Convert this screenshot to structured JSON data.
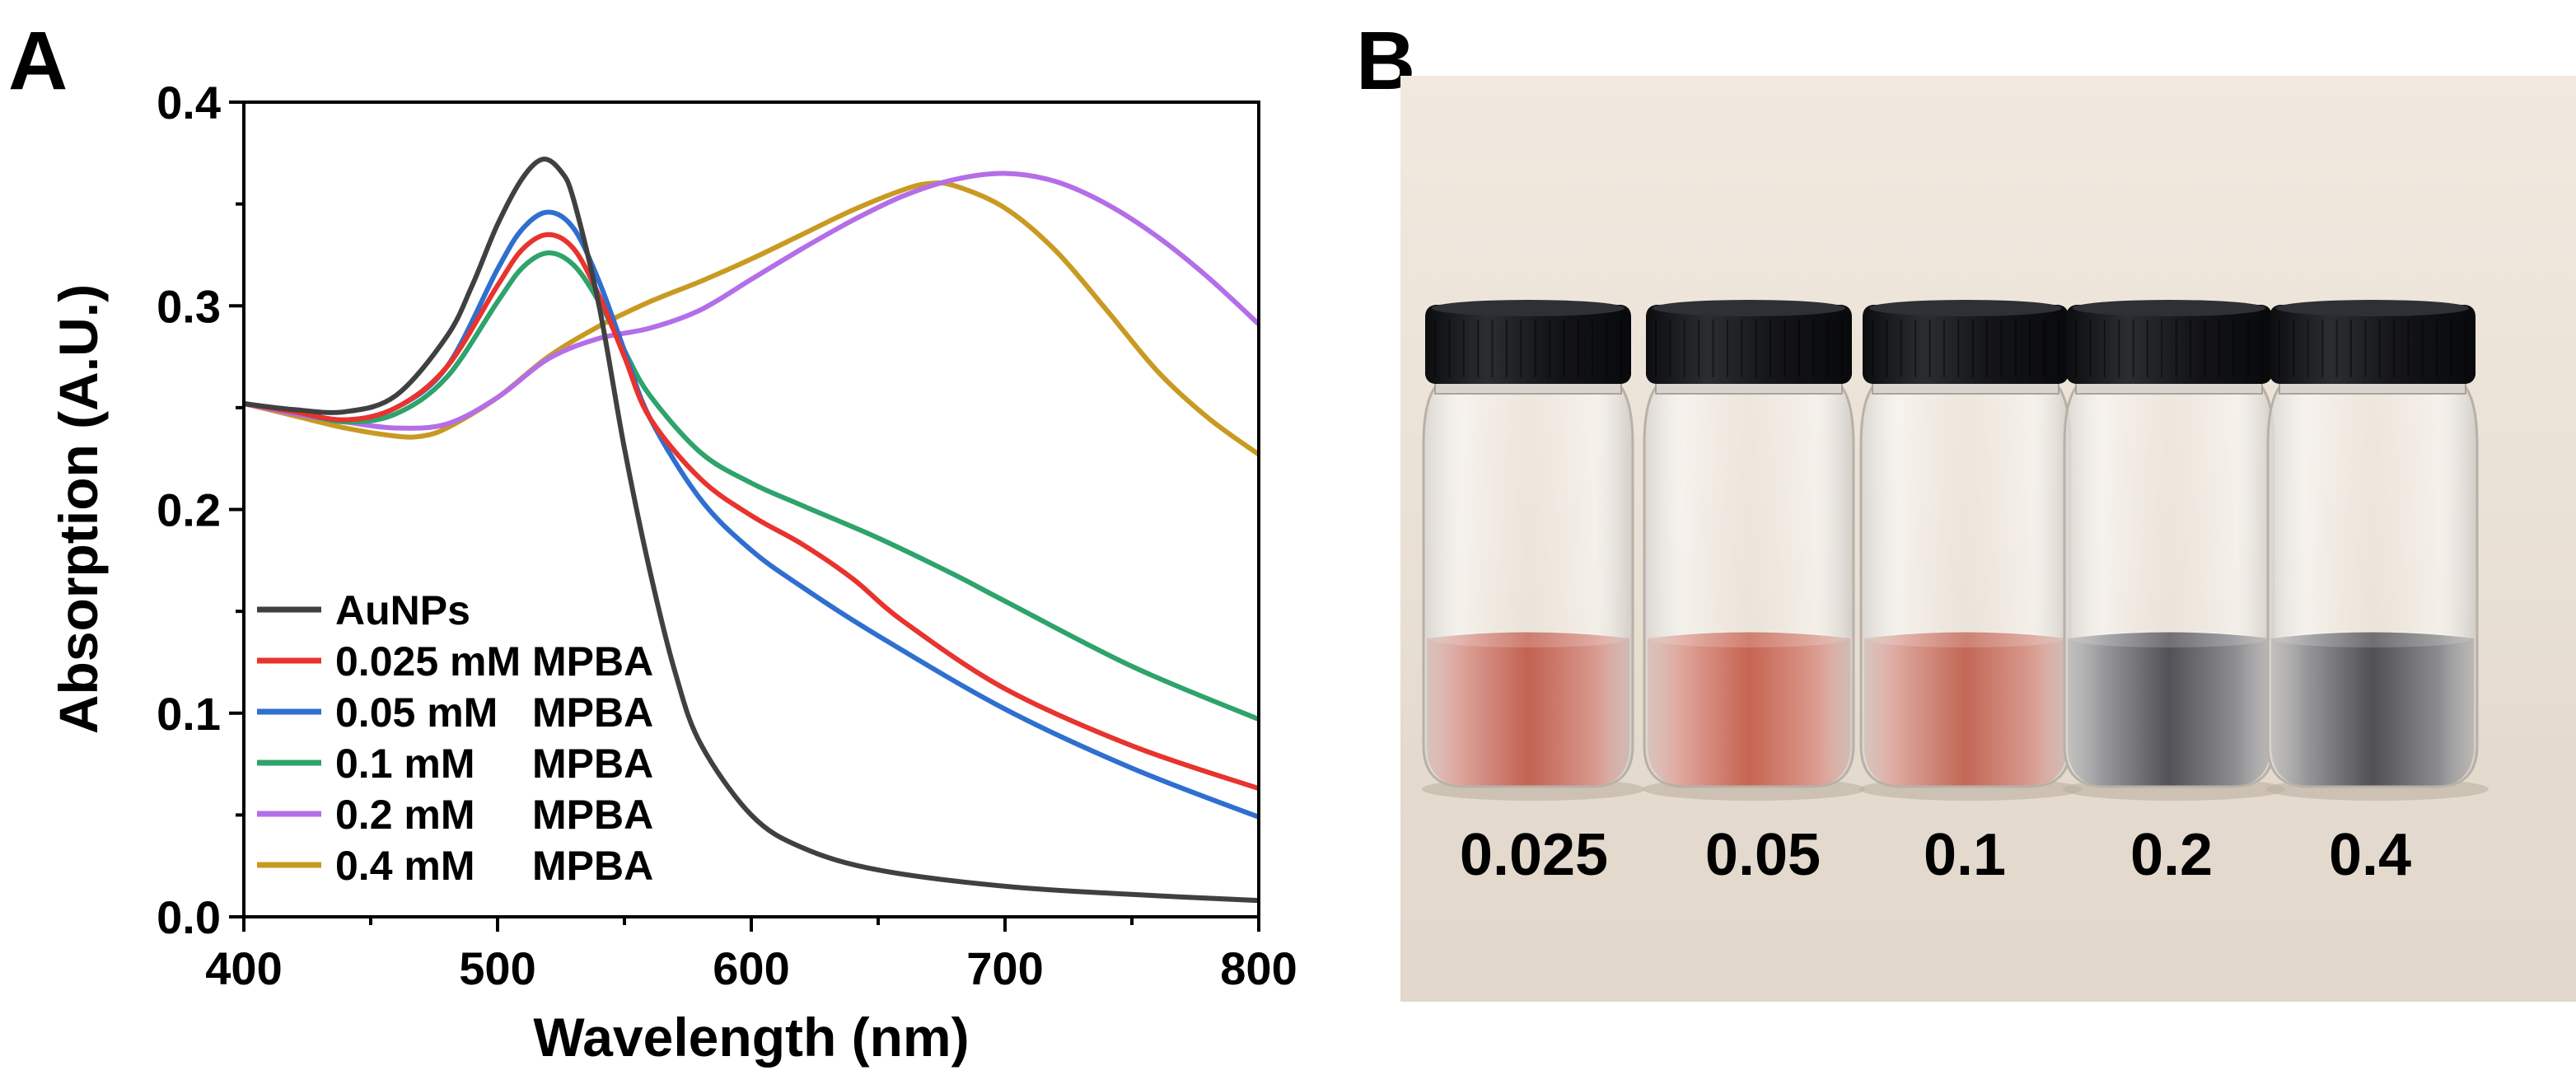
{
  "panels": {
    "a_label": "A",
    "b_label": "B"
  },
  "chart_data": {
    "type": "line",
    "title": "",
    "xlabel": "Wavelength (nm)",
    "ylabel": "Absorption (A.U.)",
    "xlim": [
      400,
      800
    ],
    "ylim": [
      0.0,
      0.4
    ],
    "xticks": [
      400,
      500,
      600,
      700,
      800
    ],
    "yticks": [
      0.0,
      0.1,
      0.2,
      0.3,
      0.4
    ],
    "xtick_labels": [
      "400",
      "500",
      "600",
      "700",
      "800"
    ],
    "ytick_labels": [
      "0.0",
      "0.1",
      "0.2",
      "0.3",
      "0.4"
    ],
    "legend_position": "bottom-left",
    "series": [
      {
        "name": "AuNPs",
        "color": "#404040",
        "x": [
          400,
          420,
          440,
          460,
          480,
          490,
          500,
          510,
          518,
          525,
          530,
          540,
          550,
          560,
          570,
          580,
          600,
          620,
          650,
          700,
          750,
          800
        ],
        "y": [
          0.252,
          0.249,
          0.248,
          0.256,
          0.285,
          0.31,
          0.34,
          0.363,
          0.372,
          0.366,
          0.352,
          0.3,
          0.23,
          0.17,
          0.12,
          0.085,
          0.05,
          0.034,
          0.023,
          0.015,
          0.011,
          0.008
        ]
      },
      {
        "name": "0.025 mM MPBA",
        "color": "#e8332e",
        "x": [
          400,
          420,
          440,
          460,
          480,
          500,
          510,
          520,
          530,
          540,
          550,
          560,
          580,
          600,
          620,
          640,
          660,
          700,
          750,
          800
        ],
        "y": [
          0.252,
          0.248,
          0.244,
          0.25,
          0.27,
          0.31,
          0.328,
          0.335,
          0.328,
          0.305,
          0.275,
          0.245,
          0.215,
          0.197,
          0.183,
          0.166,
          0.145,
          0.112,
          0.084,
          0.063
        ]
      },
      {
        "name": "0.05 mM   MPBA",
        "color": "#2f6fcf",
        "x": [
          400,
          420,
          440,
          460,
          480,
          500,
          510,
          520,
          530,
          540,
          550,
          560,
          580,
          600,
          620,
          650,
          700,
          750,
          800
        ],
        "y": [
          0.252,
          0.248,
          0.244,
          0.25,
          0.27,
          0.318,
          0.338,
          0.346,
          0.338,
          0.312,
          0.278,
          0.245,
          0.205,
          0.18,
          0.162,
          0.138,
          0.102,
          0.073,
          0.049
        ]
      },
      {
        "name": "0.1 mM     MPBA",
        "color": "#2ea36b",
        "x": [
          400,
          420,
          440,
          460,
          480,
          500,
          510,
          520,
          530,
          540,
          550,
          560,
          580,
          600,
          620,
          650,
          680,
          700,
          750,
          800
        ],
        "y": [
          0.252,
          0.248,
          0.243,
          0.247,
          0.265,
          0.302,
          0.319,
          0.326,
          0.32,
          0.302,
          0.278,
          0.256,
          0.228,
          0.213,
          0.202,
          0.186,
          0.168,
          0.155,
          0.123,
          0.097
        ]
      },
      {
        "name": "0.2 mM     MPBA",
        "color": "#b46ee8",
        "x": [
          400,
          420,
          440,
          460,
          480,
          500,
          520,
          540,
          560,
          580,
          600,
          620,
          640,
          660,
          680,
          700,
          720,
          740,
          760,
          780,
          800
        ],
        "y": [
          0.252,
          0.247,
          0.243,
          0.24,
          0.242,
          0.255,
          0.274,
          0.284,
          0.289,
          0.298,
          0.313,
          0.328,
          0.342,
          0.354,
          0.362,
          0.365,
          0.361,
          0.35,
          0.334,
          0.314,
          0.291
        ]
      },
      {
        "name": "0.4 mM     MPBA",
        "color": "#c99a22",
        "x": [
          400,
          420,
          440,
          460,
          470,
          480,
          500,
          520,
          540,
          560,
          580,
          600,
          620,
          640,
          660,
          670,
          680,
          700,
          720,
          740,
          760,
          780,
          800
        ],
        "y": [
          0.252,
          0.246,
          0.24,
          0.236,
          0.236,
          0.24,
          0.255,
          0.275,
          0.29,
          0.302,
          0.312,
          0.323,
          0.335,
          0.347,
          0.357,
          0.36,
          0.359,
          0.348,
          0.327,
          0.298,
          0.268,
          0.245,
          0.227
        ]
      }
    ]
  },
  "photo": {
    "description_labels": [
      "0.025",
      "0.05",
      "0.1",
      "0.2",
      "0.4"
    ],
    "vials": [
      {
        "label": "0.025",
        "liquid_color": "#b3331f"
      },
      {
        "label": "0.05",
        "liquid_color": "#b8361f"
      },
      {
        "label": "0.1",
        "liquid_color": "#b33a24"
      },
      {
        "label": "0.2",
        "liquid_color": "#1e1d26"
      },
      {
        "label": "0.4",
        "liquid_color": "#1b1a22"
      }
    ],
    "background_top": "#efe6dc",
    "background_bottom": "#e1d7cb",
    "cap_color": "#17181b"
  }
}
